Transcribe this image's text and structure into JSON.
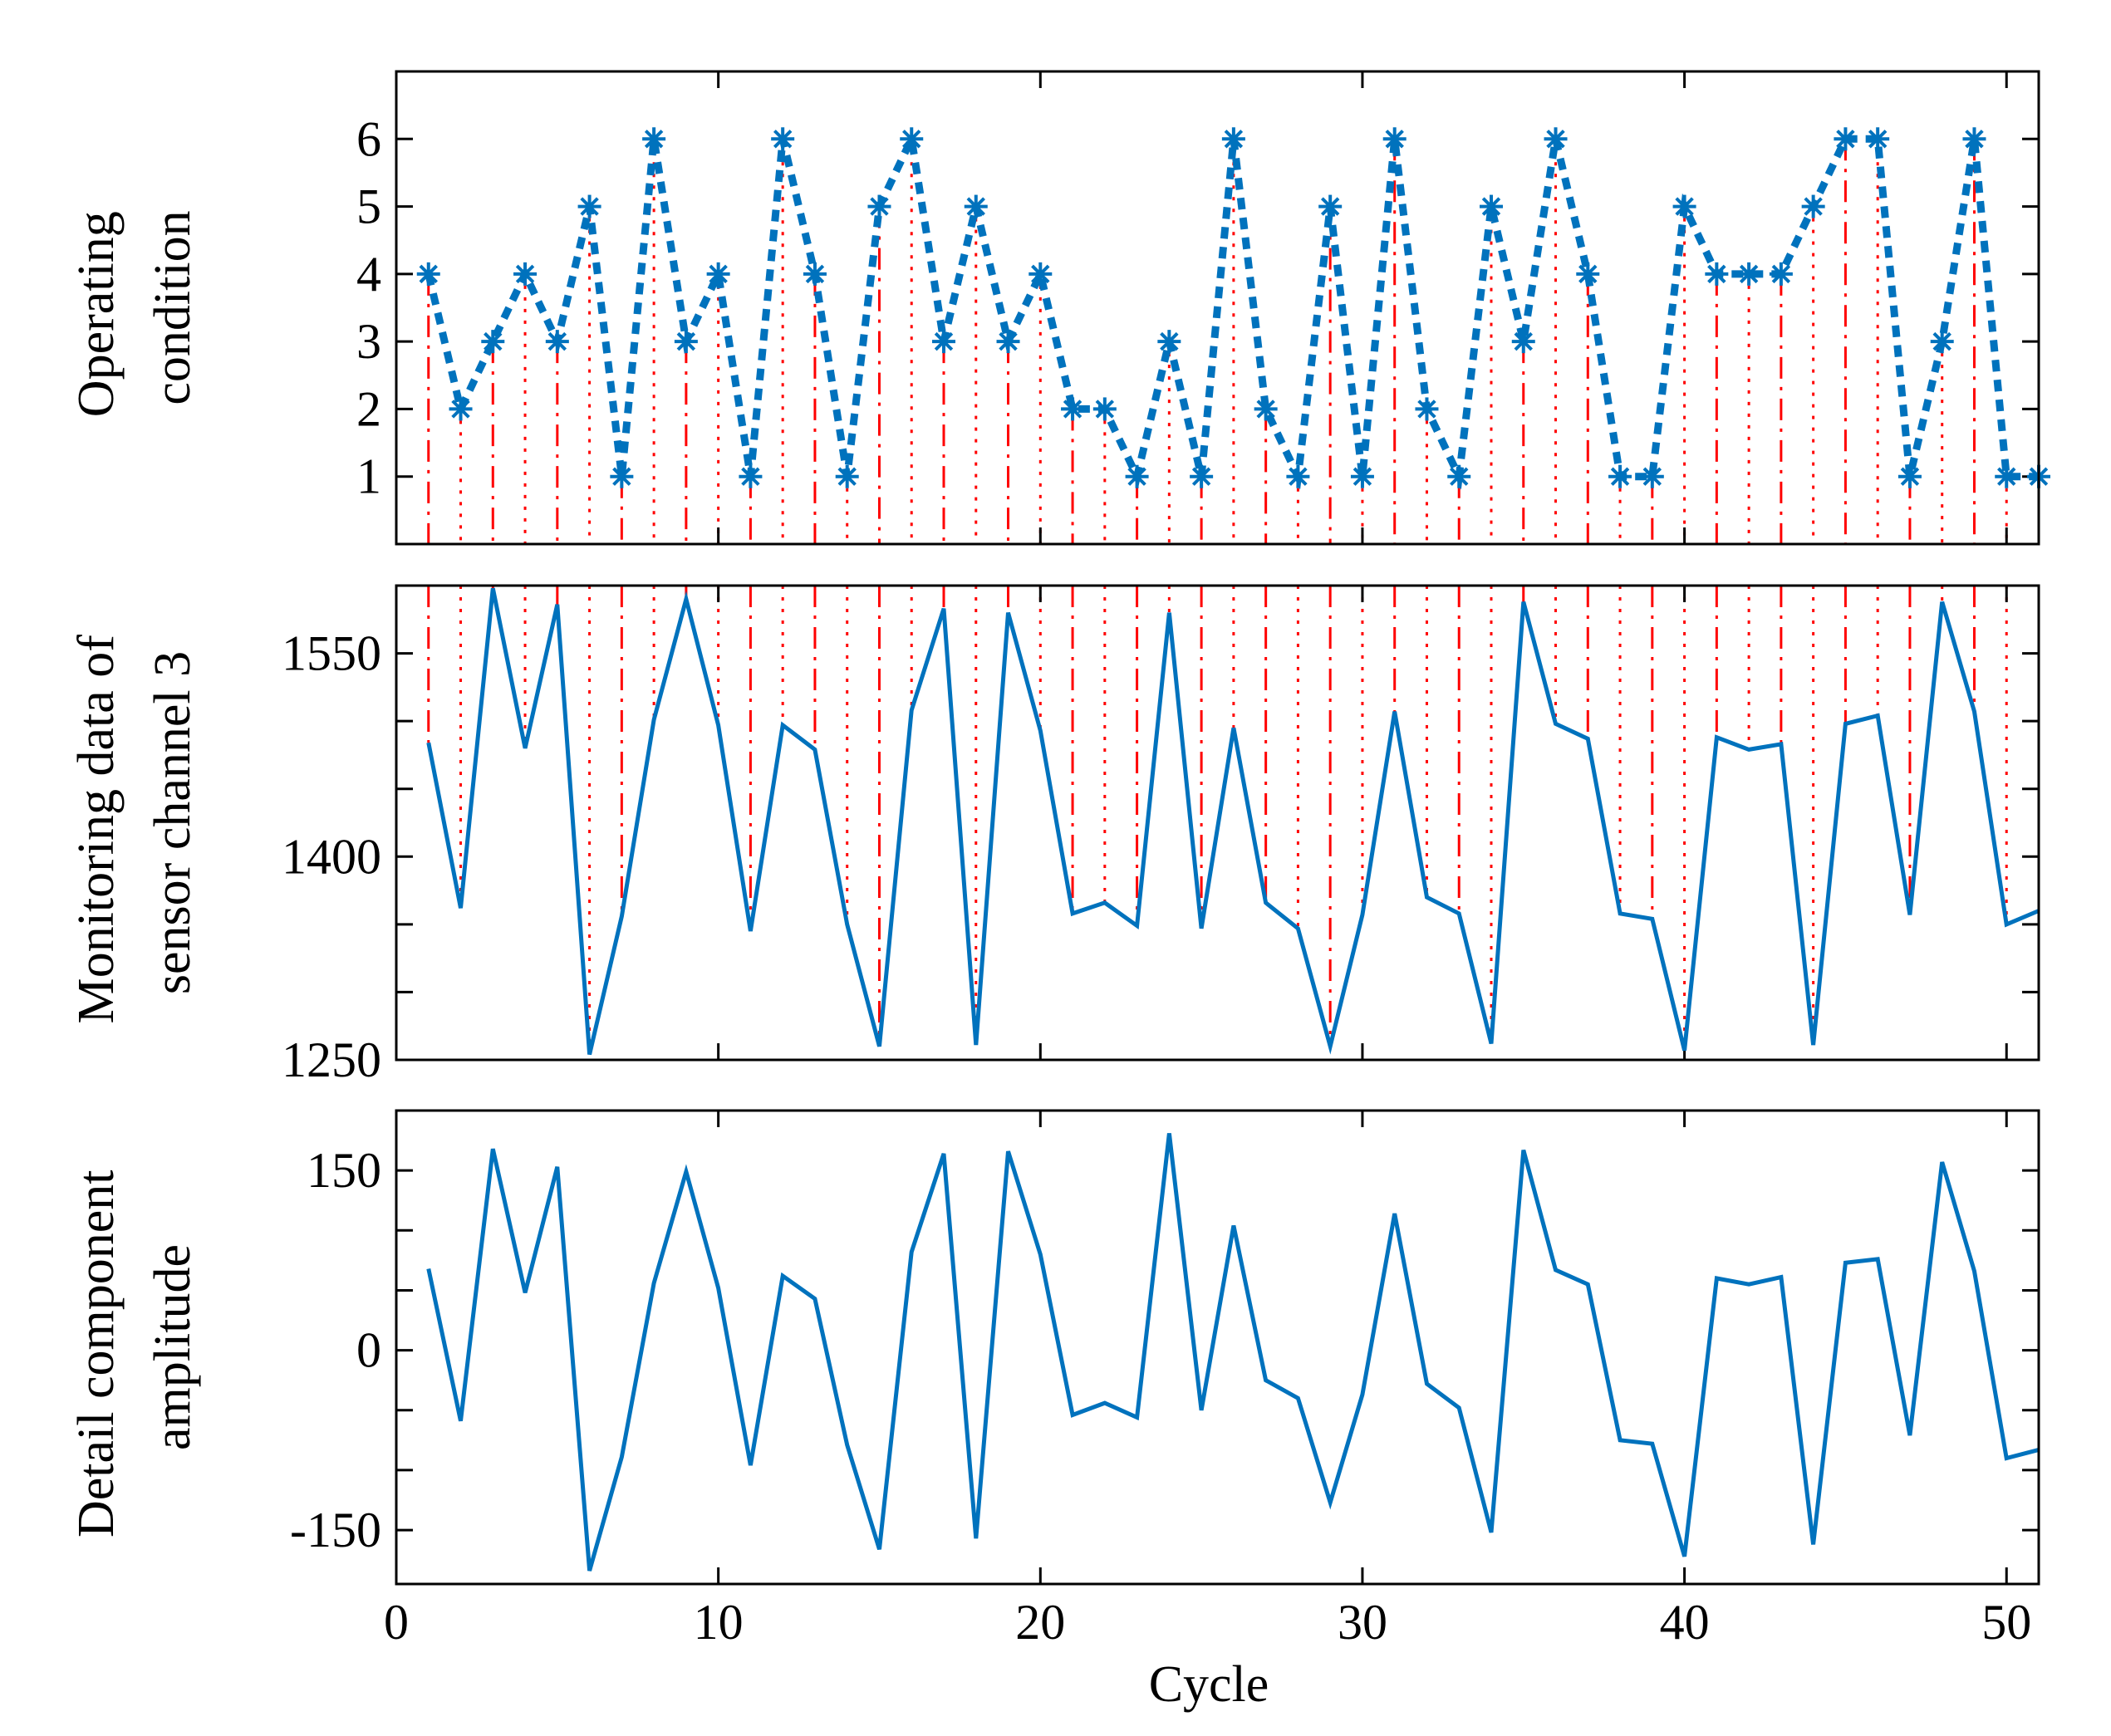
{
  "colors": {
    "series": "#0072BD",
    "guide": "#FF0000",
    "axis": "#000000"
  },
  "chart_data": [
    {
      "type": "line",
      "xlabel": "",
      "ylabel": [
        "Operating",
        "condition"
      ],
      "xlim": [
        0,
        51
      ],
      "ylim": [
        0,
        7
      ],
      "grid": false,
      "marker": "asterisk",
      "line_style": "dotted",
      "xticks": [
        0,
        10,
        20,
        30,
        40,
        50
      ],
      "xtick_labels": [],
      "yticks": [
        1,
        2,
        3,
        4,
        5,
        6
      ],
      "ytick_labels": [
        "1",
        "2",
        "3",
        "4",
        "5",
        "6"
      ],
      "x": [
        1,
        2,
        3,
        4,
        5,
        6,
        7,
        8,
        9,
        10,
        11,
        12,
        13,
        14,
        15,
        16,
        17,
        18,
        19,
        20,
        21,
        22,
        23,
        24,
        25,
        26,
        27,
        28,
        29,
        30,
        31,
        32,
        33,
        34,
        35,
        36,
        37,
        38,
        39,
        40,
        41,
        42,
        43,
        44,
        45,
        46,
        47,
        48,
        49,
        50,
        51
      ],
      "values": [
        4,
        2,
        3,
        4,
        3,
        5,
        1,
        6,
        3,
        4,
        1,
        6,
        4,
        1,
        5,
        6,
        3,
        5,
        3,
        4,
        2,
        2,
        1,
        3,
        1,
        6,
        2,
        1,
        5,
        1,
        6,
        2,
        1,
        5,
        3,
        6,
        4,
        1,
        1,
        5,
        4,
        4,
        4,
        5,
        6,
        6,
        1,
        3,
        6,
        1,
        1
      ]
    },
    {
      "type": "line",
      "xlabel": "",
      "ylabel": [
        "Monitoring data of",
        "sensor channel 3"
      ],
      "xlim": [
        0,
        51
      ],
      "ylim": [
        1250,
        1600
      ],
      "grid": false,
      "xticks": [
        0,
        10,
        20,
        30,
        40,
        50
      ],
      "xtick_labels": [],
      "yticks": [
        1250,
        1400,
        1550
      ],
      "ytick_labels": [
        "1250",
        "1400",
        "1550"
      ],
      "minor_yticks": [
        1300,
        1350,
        1450,
        1500
      ],
      "x": [
        1,
        2,
        3,
        4,
        5,
        6,
        7,
        8,
        9,
        10,
        11,
        12,
        13,
        14,
        15,
        16,
        17,
        18,
        19,
        20,
        21,
        22,
        23,
        24,
        25,
        26,
        27,
        28,
        29,
        30,
        31,
        32,
        33,
        34,
        35,
        36,
        37,
        38,
        39,
        40,
        41,
        42,
        43,
        44,
        45,
        46,
        47,
        48,
        49,
        50,
        51
      ],
      "values": [
        1484,
        1362,
        1598,
        1480,
        1586,
        1254,
        1356,
        1501,
        1590,
        1497,
        1345,
        1497,
        1479,
        1350,
        1260,
        1508,
        1583,
        1261,
        1580,
        1493,
        1358,
        1366,
        1349,
        1580,
        1347,
        1495,
        1366,
        1347,
        1260,
        1357,
        1507,
        1370,
        1358,
        1262,
        1588,
        1498,
        1487,
        1358,
        1354,
        1257,
        1488,
        1479,
        1483,
        1261,
        1498,
        1504,
        1357,
        1588,
        1507,
        1350,
        1360
      ]
    },
    {
      "type": "line",
      "xlabel": "Cycle",
      "ylabel": [
        "Detail component",
        "amplitude"
      ],
      "xlim": [
        0,
        51
      ],
      "ylim": [
        -195,
        200
      ],
      "grid": false,
      "xticks": [
        0,
        10,
        20,
        30,
        40,
        50
      ],
      "xtick_labels": [
        "0",
        "10",
        "20",
        "30",
        "40",
        "50"
      ],
      "yticks": [
        -150,
        0,
        150
      ],
      "ytick_labels": [
        "-150",
        "0",
        "150"
      ],
      "minor_yticks": [
        -100,
        -50,
        50,
        100
      ],
      "x": [
        1,
        2,
        3,
        4,
        5,
        6,
        7,
        8,
        9,
        10,
        11,
        12,
        13,
        14,
        15,
        16,
        17,
        18,
        19,
        20,
        21,
        22,
        23,
        24,
        25,
        26,
        27,
        28,
        29,
        30,
        31,
        32,
        33,
        34,
        35,
        36,
        37,
        38,
        39,
        40,
        41,
        42,
        43,
        44,
        45,
        46,
        47,
        48,
        49,
        50,
        51
      ],
      "values": [
        68,
        -59,
        168,
        48,
        153,
        -184,
        -89,
        56,
        149,
        52,
        -96,
        62,
        43,
        -79,
        -166,
        82,
        164,
        -157,
        166,
        80,
        -54,
        -44,
        -56,
        181,
        -50,
        104,
        -25,
        -40,
        -127,
        -37,
        114,
        -28,
        -48,
        -152,
        167,
        67,
        55,
        -75,
        -78,
        -172,
        60,
        55,
        61,
        -162,
        73,
        76,
        -71,
        157,
        66,
        -90,
        -83
      ]
    }
  ]
}
